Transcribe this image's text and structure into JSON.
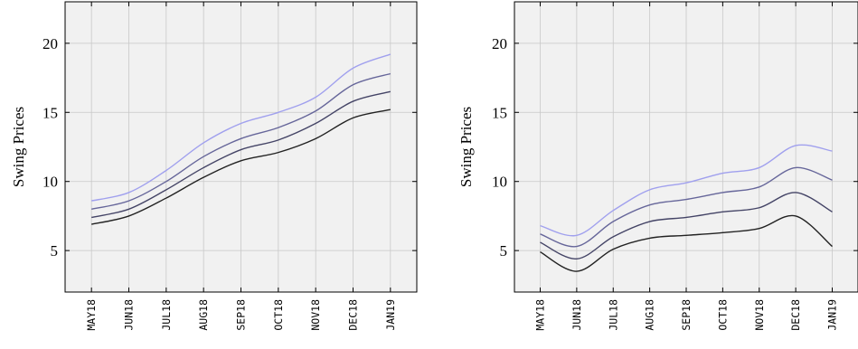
{
  "chart_data": [
    {
      "type": "line",
      "title": "",
      "xlabel": "",
      "ylabel": "Swing Prices",
      "categories": [
        "MAY18",
        "JUN18",
        "JUL18",
        "AUG18",
        "SEP18",
        "OCT18",
        "NOV18",
        "DEC18",
        "JAN19"
      ],
      "ylim": [
        2,
        23
      ],
      "yticks": [
        5,
        10,
        15,
        20
      ],
      "grid": true,
      "series": [
        {
          "color": "#222222",
          "values": [
            6.9,
            7.5,
            8.8,
            10.3,
            11.5,
            12.1,
            13.1,
            14.6,
            15.2
          ]
        },
        {
          "color": "#444466",
          "values": [
            7.4,
            8.0,
            9.4,
            11.0,
            12.3,
            13.0,
            14.2,
            15.8,
            16.5
          ]
        },
        {
          "color": "#66669a",
          "values": [
            8.0,
            8.6,
            10.0,
            11.8,
            13.1,
            13.9,
            15.1,
            17.0,
            17.8
          ]
        },
        {
          "color": "#a0a0ee",
          "values": [
            8.6,
            9.2,
            10.8,
            12.8,
            14.2,
            15.0,
            16.1,
            18.2,
            19.2
          ]
        }
      ]
    },
    {
      "type": "line",
      "title": "",
      "xlabel": "",
      "ylabel": "Swing Prices",
      "categories": [
        "MAY18",
        "JUN18",
        "JUL18",
        "AUG18",
        "SEP18",
        "OCT18",
        "NOV18",
        "DEC18",
        "JAN19"
      ],
      "ylim": [
        2,
        23
      ],
      "yticks": [
        5,
        10,
        15,
        20
      ],
      "grid": true,
      "series": [
        {
          "color": "#222222",
          "values": [
            4.9,
            3.5,
            5.1,
            5.9,
            6.1,
            6.3,
            6.6,
            7.5,
            5.3
          ]
        },
        {
          "color": "#444466",
          "values": [
            5.6,
            4.4,
            6.0,
            7.1,
            7.4,
            7.8,
            8.1,
            9.2,
            7.8
          ]
        },
        {
          "color": "#66669a",
          "values": [
            6.2,
            5.3,
            7.1,
            8.3,
            8.7,
            9.2,
            9.6,
            11.0,
            10.1
          ]
        },
        {
          "color": "#a0a0ee",
          "values": [
            6.8,
            6.1,
            7.9,
            9.4,
            9.9,
            10.6,
            11.0,
            12.6,
            12.2
          ]
        }
      ]
    }
  ]
}
